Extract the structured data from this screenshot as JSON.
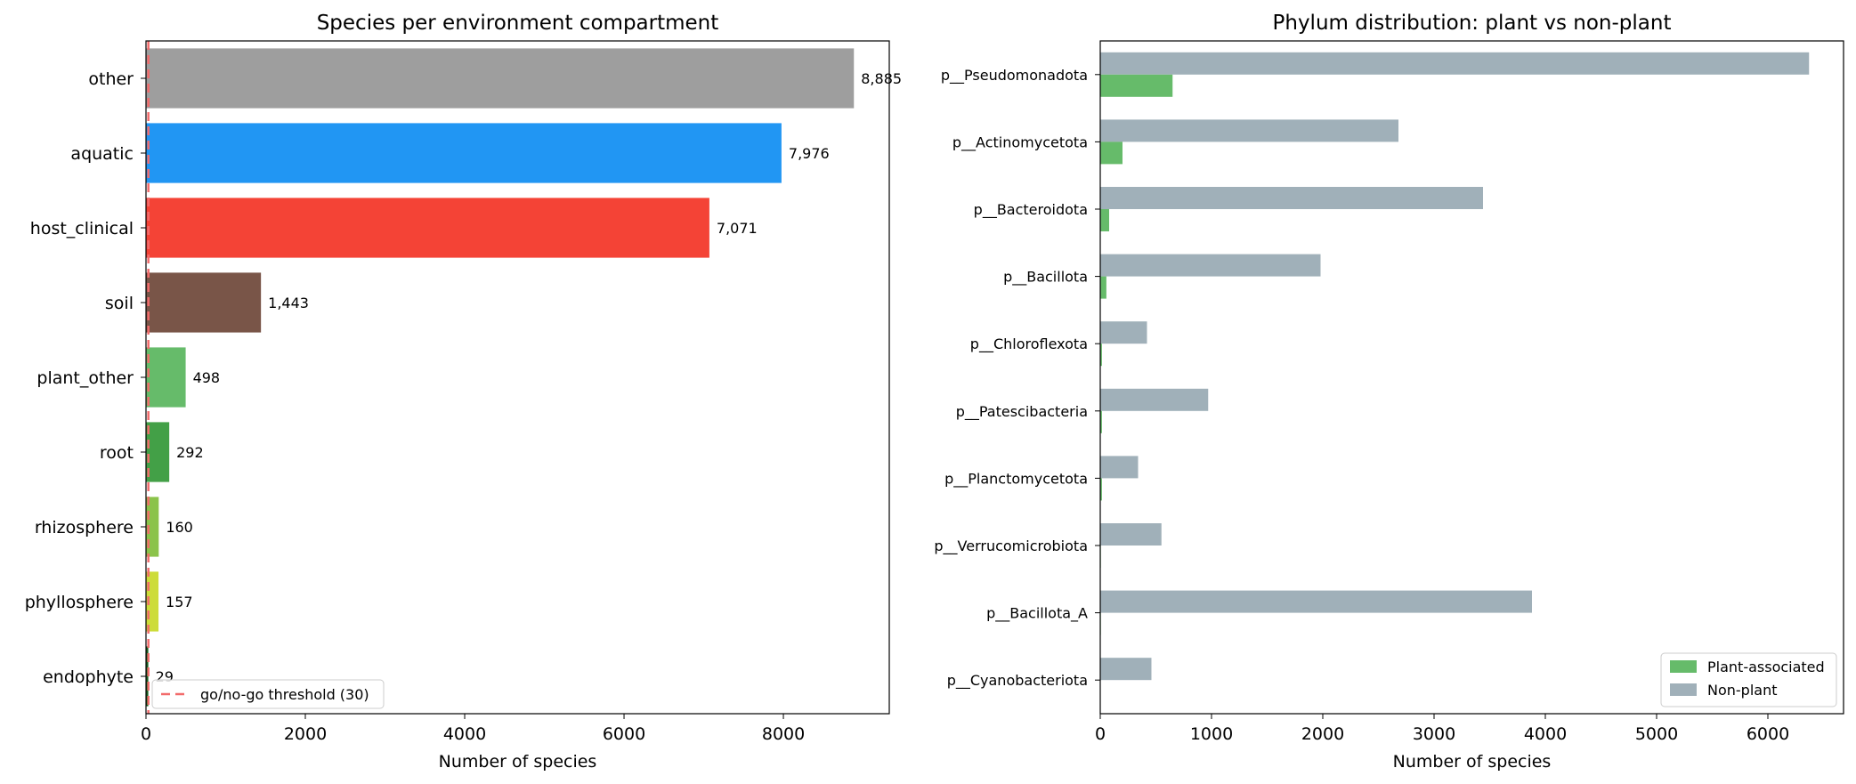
{
  "chart_data": [
    {
      "type": "bar",
      "orientation": "horizontal",
      "title": "Species per environment compartment",
      "xlabel": "Number of species",
      "ylabel": "",
      "xlim": [
        0,
        9329
      ],
      "xticks": [
        0,
        2000,
        4000,
        6000,
        8000
      ],
      "grid": false,
      "categories": [
        "other",
        "aquatic",
        "host_clinical",
        "soil",
        "plant_other",
        "root",
        "rhizosphere",
        "phyllosphere",
        "endophyte"
      ],
      "values": [
        8885,
        7976,
        7071,
        1443,
        498,
        292,
        160,
        157,
        29
      ],
      "value_labels": [
        "8,885",
        "7,976",
        "7,071",
        "1,443",
        "498",
        "292",
        "160",
        "157",
        "29"
      ],
      "colors": [
        "#9e9e9e",
        "#2196f3",
        "#f44336",
        "#795548",
        "#66bb6a",
        "#43a047",
        "#8bc34a",
        "#cddc39",
        "#1b5e20"
      ],
      "threshold": {
        "value": 30,
        "label": "go/no-go threshold (30)",
        "color": "#f26b6b"
      },
      "legend_position": "lower-left"
    },
    {
      "type": "bar",
      "orientation": "horizontal",
      "title": "Phylum distribution: plant vs non-plant",
      "xlabel": "Number of species",
      "ylabel": "",
      "xlim": [
        0,
        6680
      ],
      "xticks": [
        0,
        1000,
        2000,
        3000,
        4000,
        5000,
        6000
      ],
      "grid": false,
      "categories": [
        "p__Pseudomonadota",
        "p__Actinomycetota",
        "p__Bacteroidota",
        "p__Bacillota",
        "p__Chloroflexota",
        "p__Patescibacteria",
        "p__Planctomycetota",
        "p__Verrucomicrobiota",
        "p__Bacillota_A",
        "p__Cyanobacteriota"
      ],
      "series": [
        {
          "name": "Plant-associated",
          "color": "#66bb6a",
          "values": [
            650,
            200,
            80,
            55,
            15,
            15,
            15,
            5,
            5,
            3
          ]
        },
        {
          "name": "Non-plant",
          "color": "#a0b0b9",
          "values": [
            6370,
            2680,
            3440,
            1980,
            420,
            970,
            340,
            550,
            3880,
            460
          ]
        }
      ],
      "legend_position": "lower-right"
    }
  ]
}
